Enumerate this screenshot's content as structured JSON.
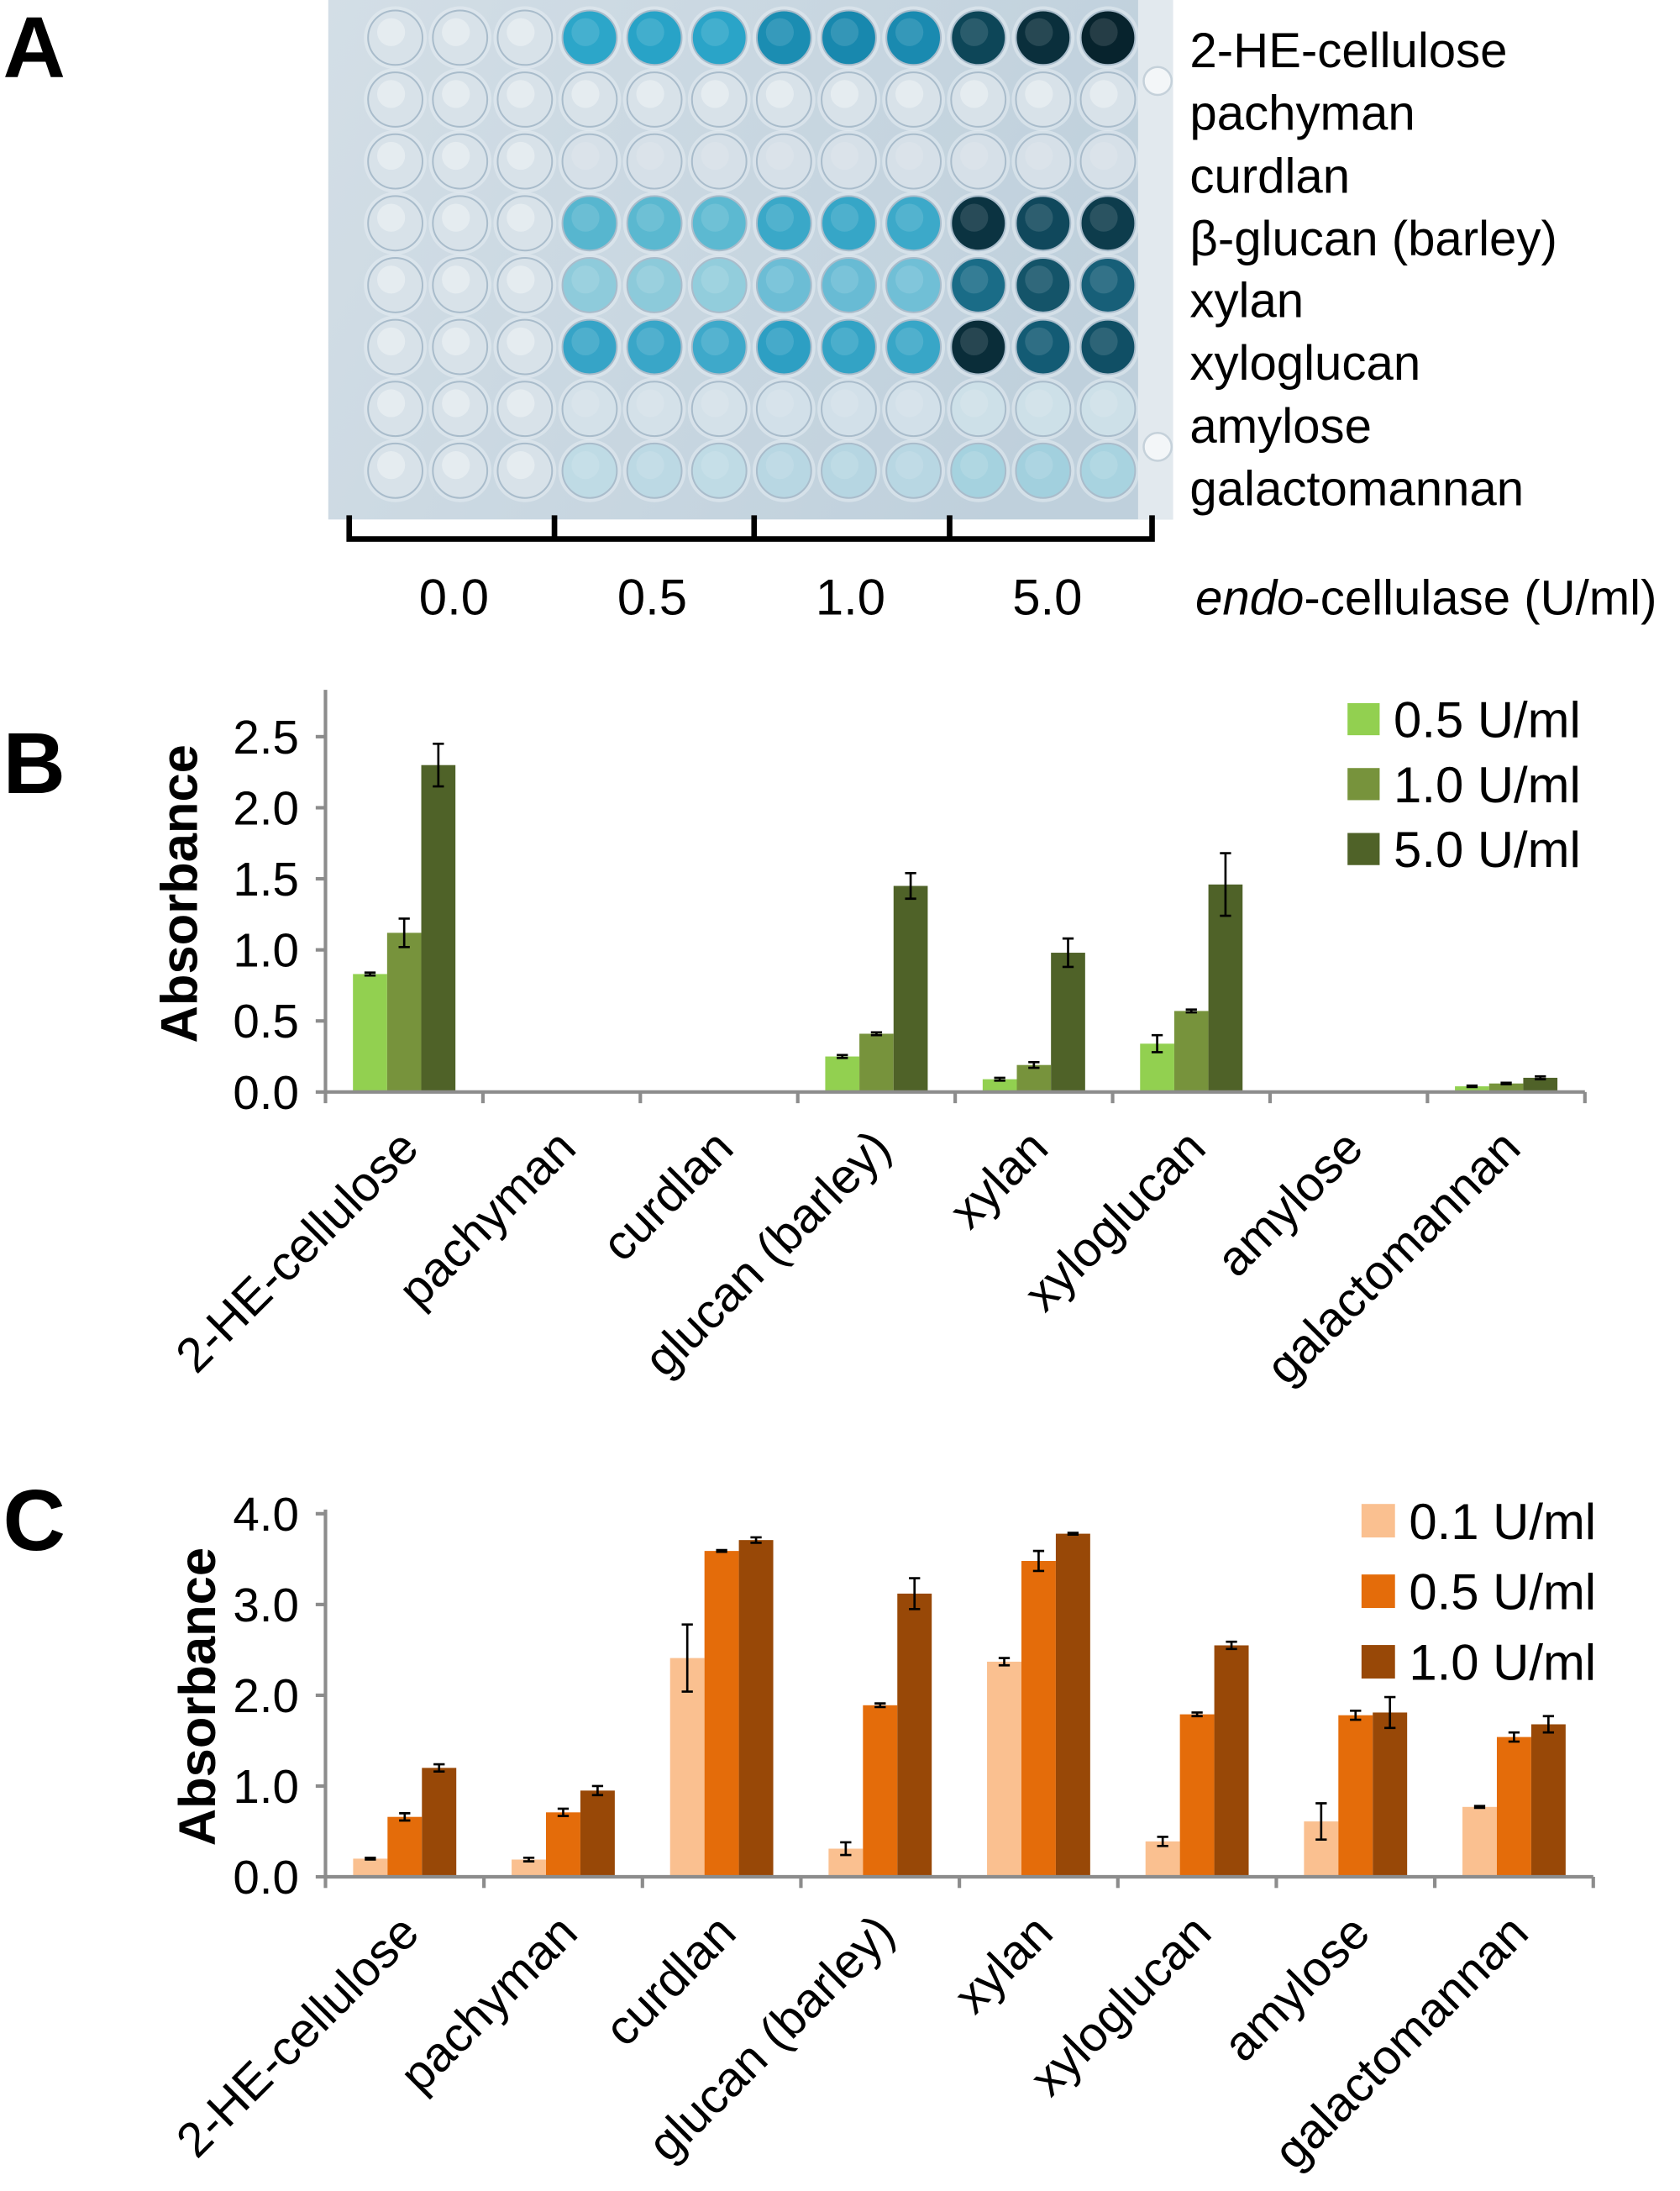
{
  "figure": {
    "panel_labels": {
      "a": "A",
      "b": "B",
      "c": "C"
    }
  },
  "plate": {
    "row_labels": [
      "2-HE-cellulose",
      "pachyman",
      "curdlan",
      "β-glucan (barley)",
      "xylan",
      "xyloglucan",
      "amylose",
      "galactomannan"
    ],
    "dose_groups": [
      "0.0",
      "0.5",
      "1.0",
      "5.0"
    ],
    "dose_axis_label_italic": "endo",
    "dose_axis_label_rest": "-cellulase (U/ml)",
    "clear_well_color": "#d8e2e9",
    "well_colors": [
      [
        "#d8e2e9",
        "#d8e2e9",
        "#d8e2e9",
        "#2ca6c9",
        "#28a3c7",
        "#2aa4c8",
        "#1b8db2",
        "#1888ae",
        "#1a8ab0",
        "#0d4658",
        "#0a2f3c",
        "#07232d"
      ],
      [
        "#d8e2e9",
        "#d8e2e9",
        "#d8e2e9",
        "#d8e2e9",
        "#d8e2e9",
        "#d8e2e9",
        "#d8e2e9",
        "#d8e2e9",
        "#d8e2e9",
        "#d8e2e9",
        "#d8e2e9",
        "#d8e2e9"
      ],
      [
        "#d8e2e9",
        "#d8e2e9",
        "#d8e2e9",
        "#d6e0e8",
        "#d6e0e8",
        "#d6e0e8",
        "#d6e0e8",
        "#d6e0e8",
        "#d6e0e8",
        "#d6e0e8",
        "#d6e0e8",
        "#d6e0e8"
      ],
      [
        "#d8e2e9",
        "#d8e2e9",
        "#d8e2e9",
        "#57b6cf",
        "#5ab8d0",
        "#5cb9d1",
        "#3aa8c8",
        "#36a6c7",
        "#3ca9c9",
        "#0b3341",
        "#10485c",
        "#0d3c4c"
      ],
      [
        "#d8e2e9",
        "#d8e2e9",
        "#d8e2e9",
        "#8ecbdb",
        "#8ccada",
        "#92cddc",
        "#6cbdd5",
        "#68bbd4",
        "#70bfd6",
        "#1a6c87",
        "#145469",
        "#175f78"
      ],
      [
        "#d8e2e9",
        "#d8e2e9",
        "#d8e2e9",
        "#36a4c7",
        "#39a6c8",
        "#3ea9ca",
        "#2d9fc3",
        "#33a3c5",
        "#38a6c7",
        "#0a2d39",
        "#135b74",
        "#104f65"
      ],
      [
        "#d8e2e9",
        "#d8e2e9",
        "#d8e2e9",
        "#d4e1e9",
        "#d4e1e9",
        "#d4e1e9",
        "#d2e0e9",
        "#d2e0e9",
        "#d2e0e9",
        "#cde0e8",
        "#cde0e8",
        "#cde0e8"
      ],
      [
        "#d8e2e9",
        "#d8e2e9",
        "#d8e2e9",
        "#bfdbe5",
        "#bcd9e4",
        "#bfdbe5",
        "#b8d7e3",
        "#b6d6e2",
        "#b8d7e3",
        "#a5d2df",
        "#a2d0de",
        "#a8d3e0"
      ]
    ]
  },
  "chart_data": [
    {
      "type": "bar",
      "categories": [
        "2-HE-cellulose",
        "pachyman",
        "curdlan",
        "glucan (barley)",
        "xylan",
        "xyloglucan",
        "amylose",
        "galactomannan"
      ],
      "series": [
        {
          "name": "0.5 U/ml",
          "color": "#92D050",
          "values": [
            0.83,
            0,
            0,
            0.25,
            0.09,
            0.34,
            0,
            0.04
          ],
          "errors": [
            0.01,
            0,
            0,
            0.01,
            0.01,
            0.06,
            0,
            0.005
          ]
        },
        {
          "name": "1.0 U/ml",
          "color": "#77933C",
          "values": [
            1.12,
            0,
            0,
            0.41,
            0.19,
            0.57,
            0,
            0.06
          ],
          "errors": [
            0.1,
            0,
            0,
            0.01,
            0.02,
            0.01,
            0,
            0.005
          ]
        },
        {
          "name": "5.0 U/ml",
          "color": "#4F6228",
          "values": [
            2.3,
            0,
            0,
            1.45,
            0.98,
            1.46,
            0,
            0.1
          ],
          "errors": [
            0.15,
            0,
            0,
            0.09,
            0.1,
            0.22,
            0,
            0.01
          ]
        }
      ],
      "ylabel": "Absorbance",
      "ylim": [
        0,
        2.8
      ],
      "yticks": [
        0,
        0.5,
        1.0,
        1.5,
        2.0,
        2.5
      ],
      "tick_decimals": 1,
      "legend_position": "top-right"
    },
    {
      "type": "bar",
      "categories": [
        "2-HE-cellulose",
        "pachyman",
        "curdlan",
        "glucan (barley)",
        "xylan",
        "xyloglucan",
        "amylose",
        "galactomannan"
      ],
      "series": [
        {
          "name": "0.1 U/ml",
          "color": "#FAC090",
          "values": [
            0.2,
            0.19,
            2.41,
            0.31,
            2.37,
            0.39,
            0.61,
            0.77
          ],
          "errors": [
            0.01,
            0.02,
            0.37,
            0.07,
            0.04,
            0.05,
            0.2,
            0.01
          ]
        },
        {
          "name": "0.5 U/ml",
          "color": "#E46C0A",
          "values": [
            0.66,
            0.71,
            3.59,
            1.89,
            3.48,
            1.79,
            1.78,
            1.54
          ],
          "errors": [
            0.04,
            0.04,
            0.01,
            0.02,
            0.11,
            0.02,
            0.05,
            0.05
          ]
        },
        {
          "name": "1.0 U/ml",
          "color": "#984807",
          "values": [
            1.2,
            0.95,
            3.71,
            3.12,
            3.78,
            2.55,
            1.81,
            1.68
          ],
          "errors": [
            0.04,
            0.05,
            0.03,
            0.17,
            0.01,
            0.04,
            0.17,
            0.09
          ]
        }
      ],
      "ylabel": "Absorbance",
      "ylim": [
        0,
        4
      ],
      "yticks": [
        0,
        1.0,
        2.0,
        3.0,
        4.0
      ],
      "tick_decimals": 1,
      "legend_position": "top-right"
    }
  ]
}
